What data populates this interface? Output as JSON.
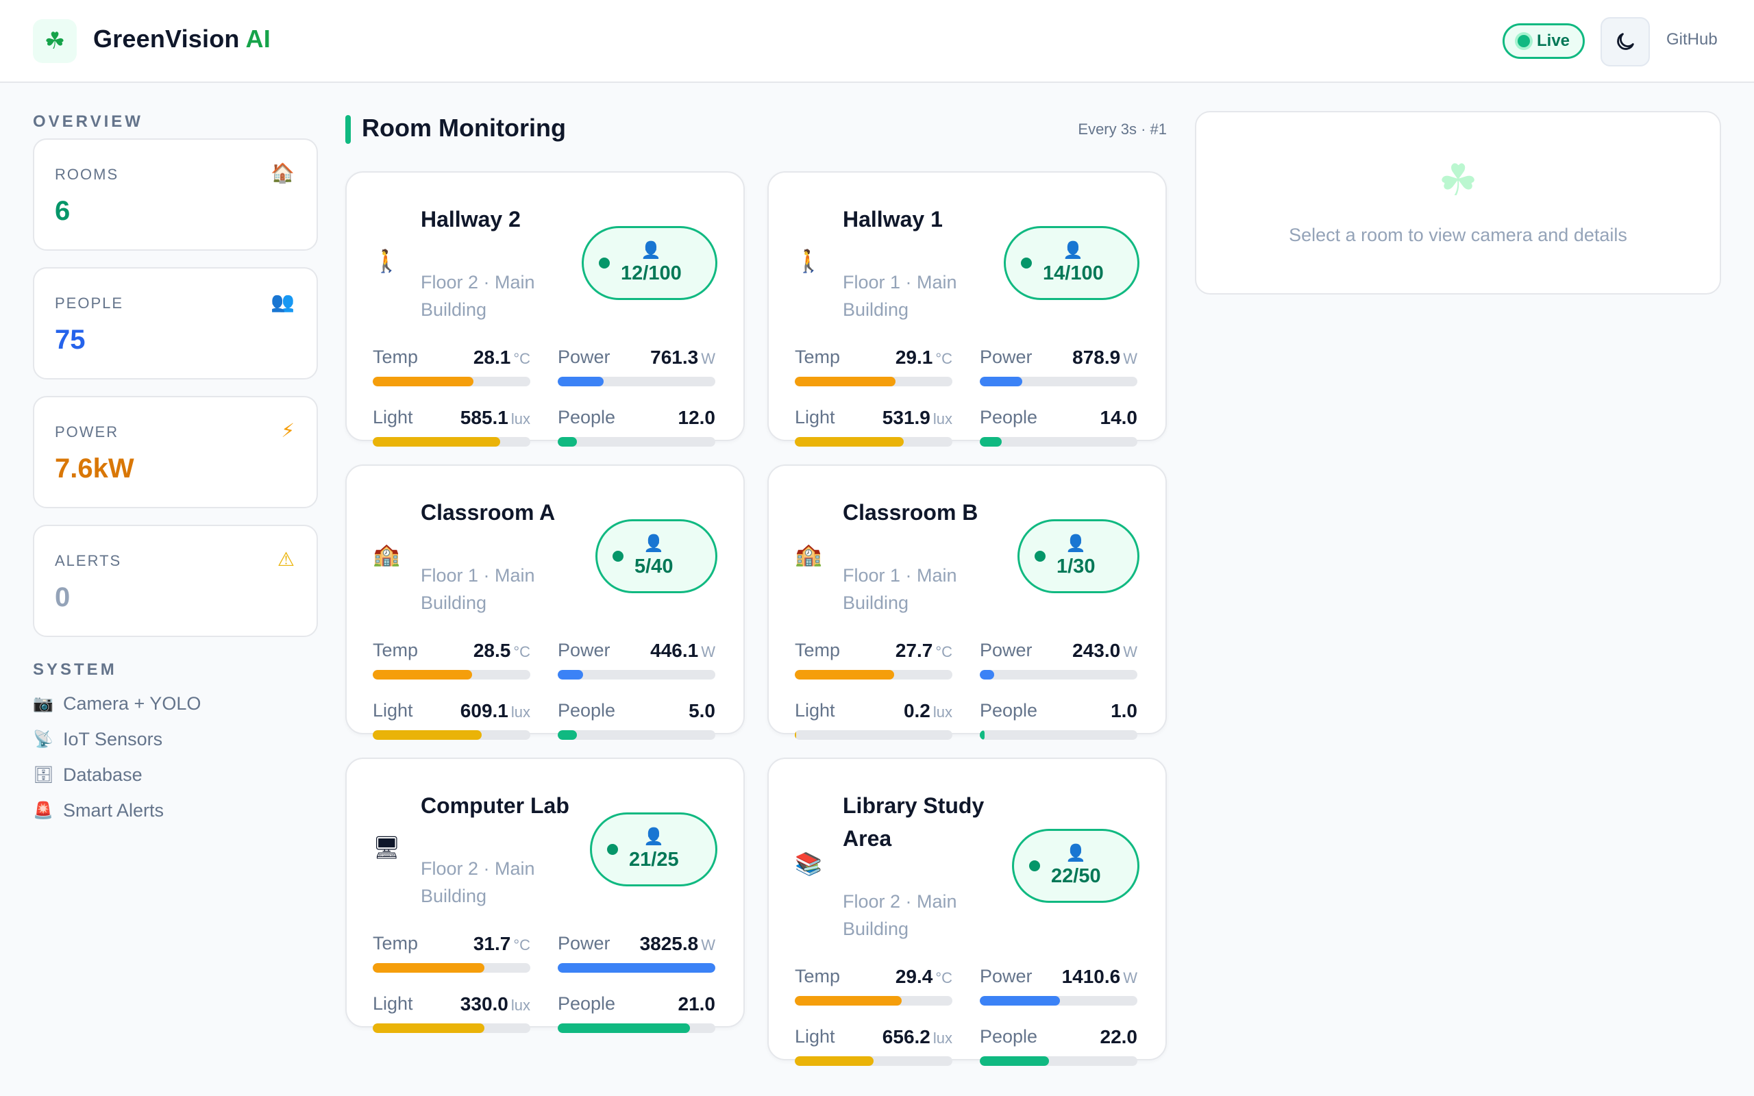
{
  "header": {
    "brand_main": "GreenVision",
    "brand_accent": "AI",
    "logo_icon": "shamrock-icon",
    "live_label": "Live",
    "github_label": "GitHub"
  },
  "sidebar": {
    "overview_heading": "OVERVIEW",
    "stats": [
      {
        "label": "ROOMS",
        "value": "6",
        "icon": "house-icon",
        "color": "#059669"
      },
      {
        "label": "PEOPLE",
        "value": "75",
        "icon": "people-icon",
        "color": "#2563eb"
      },
      {
        "label": "POWER",
        "value": "7.6kW",
        "icon": "lightning-icon",
        "color": "#d97706"
      },
      {
        "label": "ALERTS",
        "value": "0",
        "icon": "warning-icon",
        "color": "#94a3b8"
      }
    ],
    "system_heading": "SYSTEM",
    "system_items": [
      {
        "label": "Camera + YOLO",
        "icon": "camera-icon"
      },
      {
        "label": "IoT Sensors",
        "icon": "antenna-icon"
      },
      {
        "label": "Database",
        "icon": "cabinet-icon"
      },
      {
        "label": "Smart Alerts",
        "icon": "siren-icon"
      }
    ]
  },
  "main": {
    "title": "Room Monitoring",
    "refresh": "Every 3s · #1",
    "rooms": [
      {
        "name": "Hallway 2",
        "floor": "Floor 2 · Main Building",
        "icon": "walking-person-icon",
        "occupancy": "12/100",
        "temp": {
          "label": "Temp",
          "value": "28.1",
          "unit": "°C",
          "level": 0.64
        },
        "power": {
          "label": "Power",
          "value": "761.3",
          "unit": "W",
          "level": 0.29
        },
        "light": {
          "label": "Light",
          "value": "585.1",
          "unit": "lux",
          "level": 0.81
        },
        "people": {
          "label": "People",
          "value": "12.0",
          "level": 0.12
        }
      },
      {
        "name": "Hallway 1",
        "floor": "Floor 1 · Main Building",
        "icon": "walking-person-icon",
        "occupancy": "14/100",
        "temp": {
          "label": "Temp",
          "value": "29.1",
          "unit": "°C",
          "level": 0.64
        },
        "power": {
          "label": "Power",
          "value": "878.9",
          "unit": "W",
          "level": 0.27
        },
        "light": {
          "label": "Light",
          "value": "531.9",
          "unit": "lux",
          "level": 0.69
        },
        "people": {
          "label": "People",
          "value": "14.0",
          "level": 0.14
        }
      },
      {
        "name": "Classroom A",
        "floor": "Floor 1 · Main Building",
        "icon": "school-icon",
        "occupancy": "5/40",
        "temp": {
          "label": "Temp",
          "value": "28.5",
          "unit": "°C",
          "level": 0.63
        },
        "power": {
          "label": "Power",
          "value": "446.1",
          "unit": "W",
          "level": 0.16
        },
        "light": {
          "label": "Light",
          "value": "609.1",
          "unit": "lux",
          "level": 0.69
        },
        "people": {
          "label": "People",
          "value": "5.0",
          "level": 0.12
        }
      },
      {
        "name": "Classroom B",
        "floor": "Floor 1 · Main Building",
        "icon": "school-icon",
        "occupancy": "1/30",
        "temp": {
          "label": "Temp",
          "value": "27.7",
          "unit": "°C",
          "level": 0.63
        },
        "power": {
          "label": "Power",
          "value": "243.0",
          "unit": "W",
          "level": 0.09
        },
        "light": {
          "label": "Light",
          "value": "0.2",
          "unit": "lux",
          "level": 0.01
        },
        "people": {
          "label": "People",
          "value": "1.0",
          "level": 0.03
        }
      },
      {
        "name": "Computer Lab",
        "floor": "Floor 2 · Main Building",
        "icon": "desktop-computer-icon",
        "occupancy": "21/25",
        "temp": {
          "label": "Temp",
          "value": "31.7",
          "unit": "°C",
          "level": 0.71
        },
        "power": {
          "label": "Power",
          "value": "3825.8",
          "unit": "W",
          "level": 1.0
        },
        "light": {
          "label": "Light",
          "value": "330.0",
          "unit": "lux",
          "level": 0.71
        },
        "people": {
          "label": "People",
          "value": "21.0",
          "level": 0.84
        }
      },
      {
        "name": "Library Study Area",
        "floor": "Floor 2 · Main Building",
        "icon": "books-icon",
        "occupancy": "22/50",
        "temp": {
          "label": "Temp",
          "value": "29.4",
          "unit": "°C",
          "level": 0.68
        },
        "power": {
          "label": "Power",
          "value": "1410.6",
          "unit": "W",
          "level": 0.51
        },
        "light": {
          "label": "Light",
          "value": "656.2",
          "unit": "lux",
          "level": 0.5
        },
        "people": {
          "label": "People",
          "value": "22.0",
          "level": 0.44
        }
      }
    ]
  },
  "detail": {
    "icon": "shamrock-icon",
    "message": "Select a room to view camera and details"
  },
  "colors": {
    "accent": "#10b981",
    "temp_bar": "#f59e0b",
    "power_bar": "#3b82f6",
    "light_bar": "#eab308",
    "people_bar": "#10b981"
  }
}
